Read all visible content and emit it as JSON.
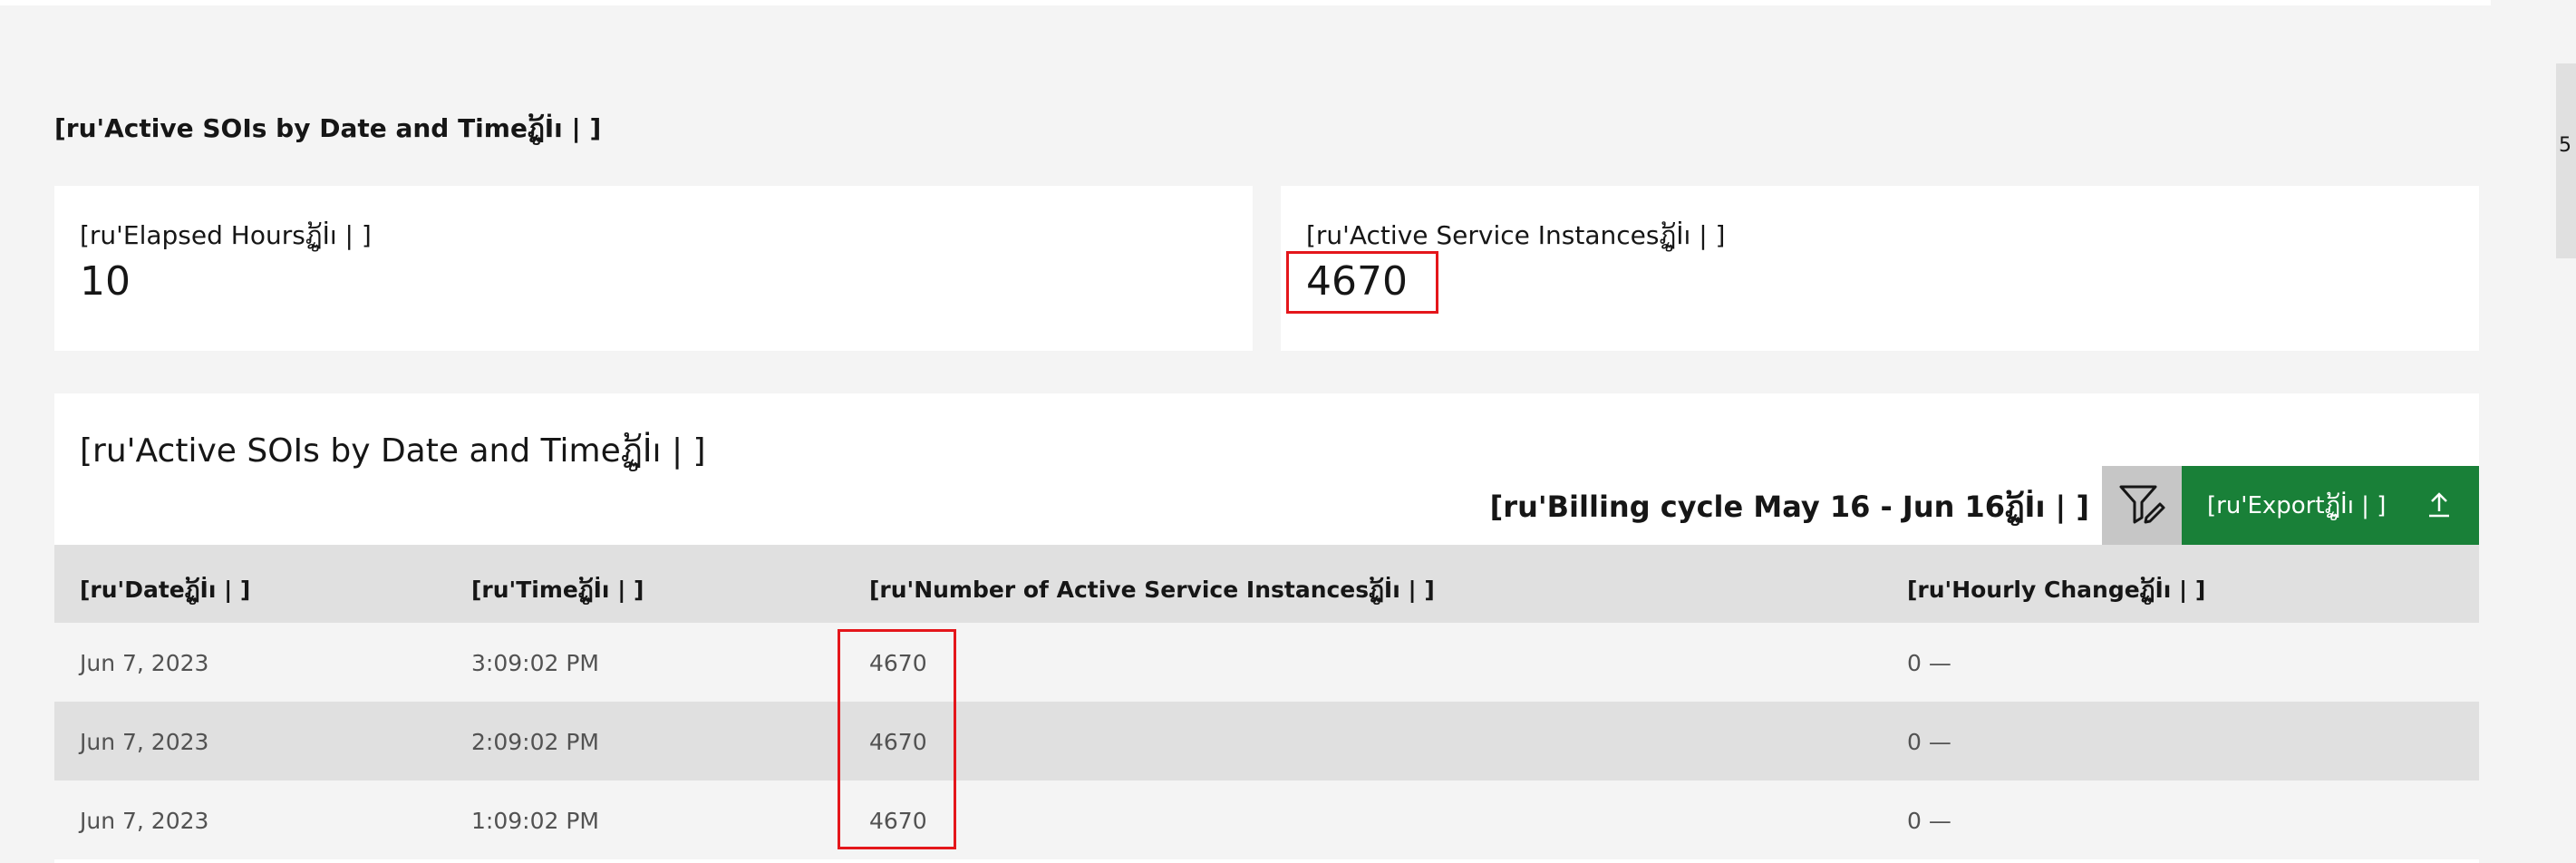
{
  "page": {
    "section_heading": "[ru'Active SOIs by Date and Timeฏູ້İı | ]",
    "side_tab_text": "5"
  },
  "tiles": {
    "elapsed": {
      "label": "[ru'Elapsed Hoursฏູ້İı | ]",
      "value": "10"
    },
    "active": {
      "label": "[ru'Active Service Instancesฏູ້İı | ]",
      "value": "4670"
    }
  },
  "table": {
    "title": "[ru'Active SOIs by Date and Timeฏູ້İı | ]",
    "billing_cycle": "[ru'Billing cycle May 16 - Jun 16ฏູ້İı | ]",
    "export_label": "[ru'Exportฏູ້İı | ]",
    "columns": [
      "[ru'Dateฏູ້İı | ]",
      "[ru'Timeฏູ້İı | ]",
      "[ru'Number of Active Service Instancesฏູ້İı | ]",
      "[ru'Hourly Changeฏູ້İı | ]"
    ],
    "rows": [
      {
        "date": "Jun 7, 2023",
        "time": "3:09:02 PM",
        "count": "4670",
        "change": "0 —"
      },
      {
        "date": "Jun 7, 2023",
        "time": "2:09:02 PM",
        "count": "4670",
        "change": "0 —"
      },
      {
        "date": "Jun 7, 2023",
        "time": "1:09:02 PM",
        "count": "4670",
        "change": "0 —"
      }
    ]
  },
  "colors": {
    "export_green": "#198038",
    "highlight_red": "#e4161b",
    "header_gray": "#e0e0e0"
  },
  "icons": {
    "filter": "filter-edit-icon",
    "export": "upload-icon"
  }
}
